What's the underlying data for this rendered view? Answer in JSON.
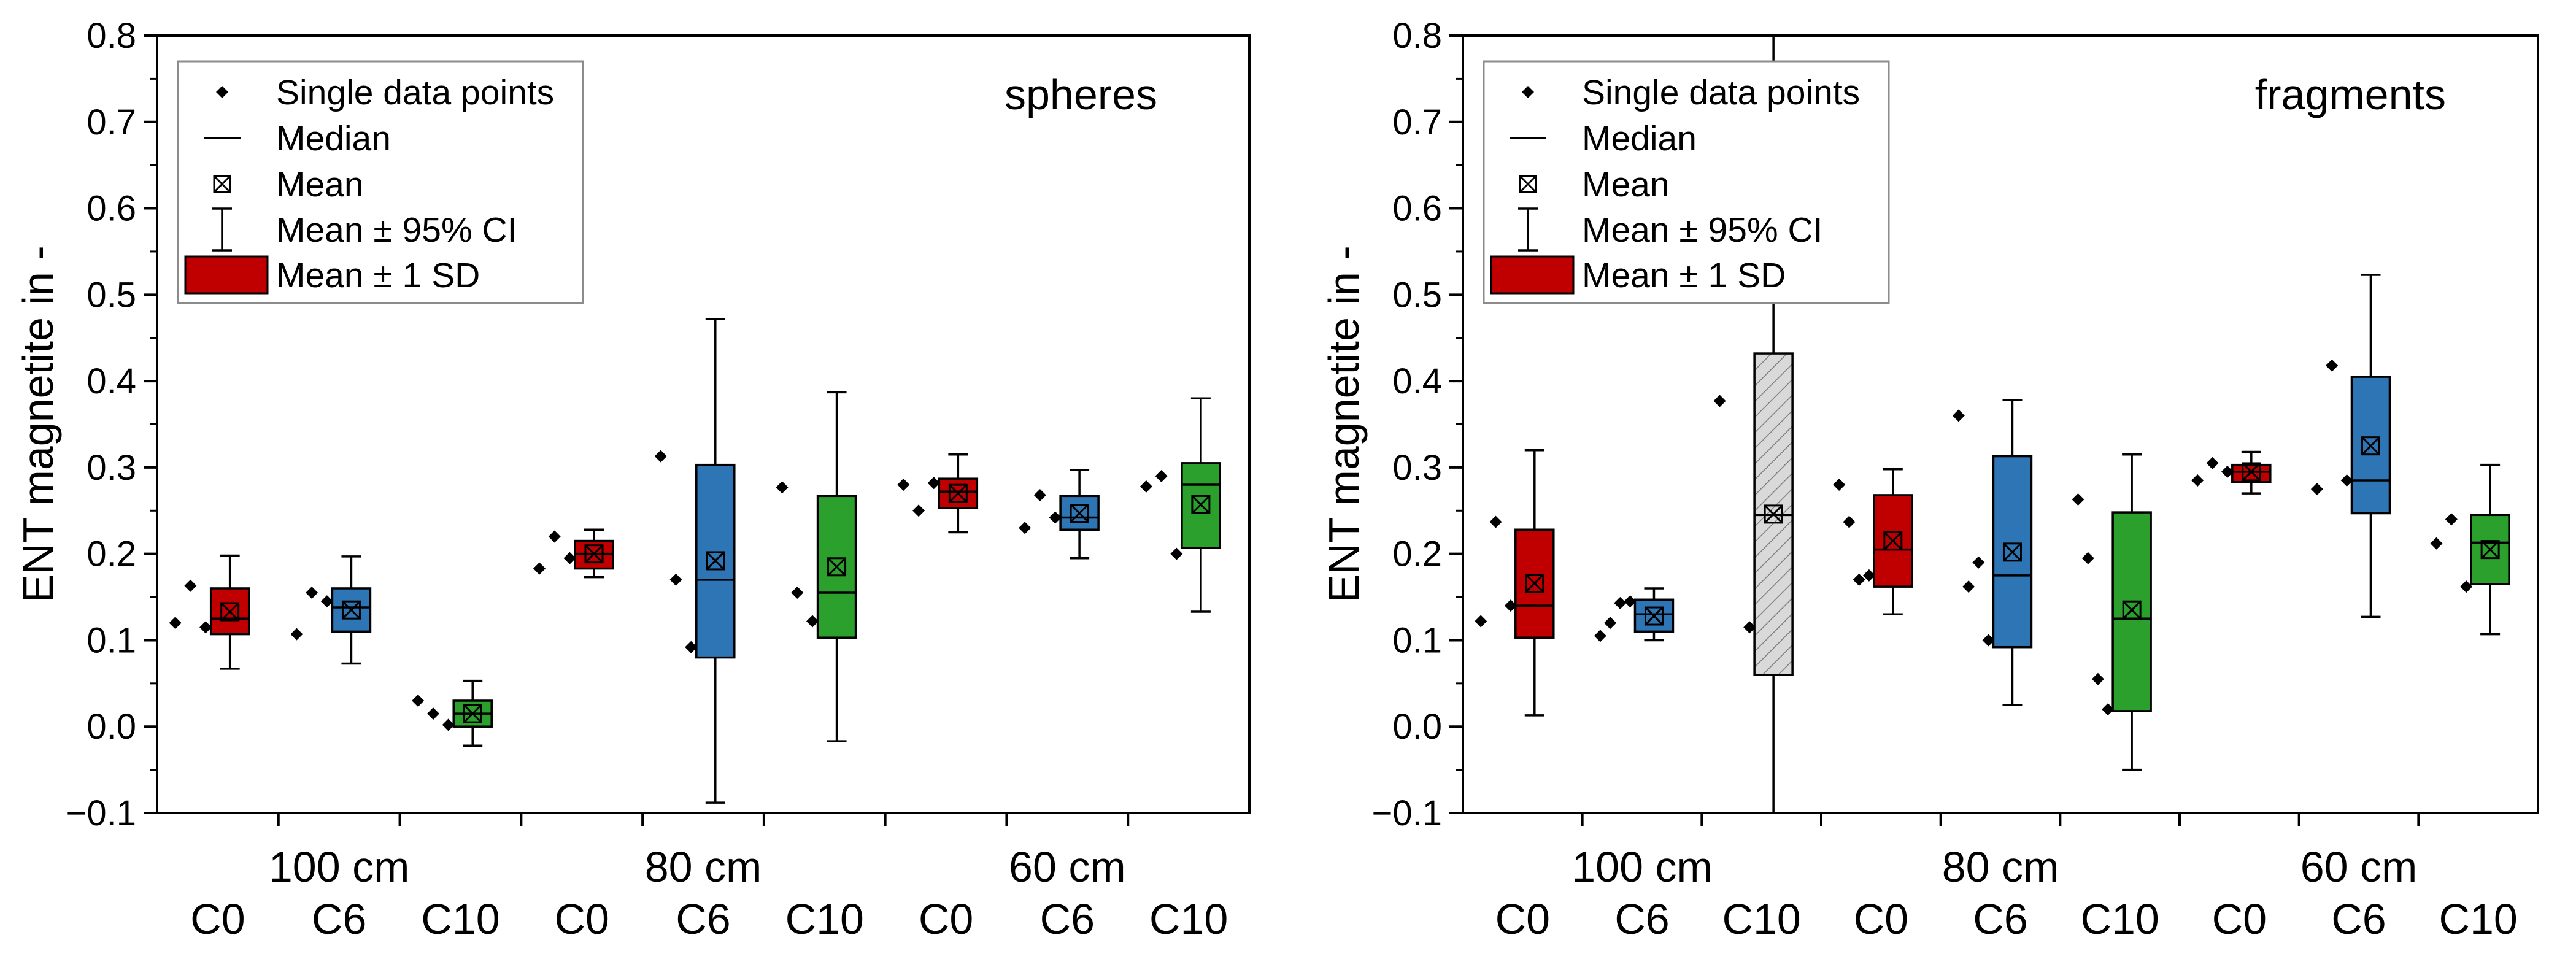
{
  "ylabel": "ENT magnetite in -",
  "ylim": [
    -0.1,
    0.8
  ],
  "yticks": [
    "−0.1",
    "0.0",
    "0.1",
    "0.2",
    "0.3",
    "0.4",
    "0.5",
    "0.6",
    "0.7",
    "0.8"
  ],
  "groups": [
    "100 cm",
    "80 cm",
    "60 cm"
  ],
  "conditions": [
    "C0",
    "C6",
    "C10",
    "C0",
    "C6",
    "C10",
    "C0",
    "C6",
    "C10"
  ],
  "legend": {
    "single": "Single data points",
    "median": "Median",
    "mean": "Mean",
    "ci": "Mean ± 95% CI",
    "sd": "Mean ± 1 SD"
  },
  "colors": {
    "C0": "#c00000",
    "C6": "#2e75b6",
    "C10": "#2ca02c",
    "hatched": "#d9d9d9"
  },
  "chart_data": [
    {
      "type": "box",
      "title": "spheres",
      "ylabel": "ENT magnetite in -",
      "ylim": [
        -0.1,
        0.8
      ],
      "legend_position": "top-left",
      "boxes": [
        {
          "group": "100 cm",
          "condition": "C0",
          "points": [
            0.12,
            0.163,
            0.115
          ],
          "sd": [
            0.107,
            0.16
          ],
          "ci": [
            0.067,
            0.198
          ],
          "median": 0.125,
          "mean": 0.133
        },
        {
          "group": "100 cm",
          "condition": "C6",
          "points": [
            0.107,
            0.155,
            0.145
          ],
          "sd": [
            0.11,
            0.16
          ],
          "ci": [
            0.073,
            0.197
          ],
          "median": 0.138,
          "mean": 0.135
        },
        {
          "group": "100 cm",
          "condition": "C10",
          "points": [
            0.03,
            0.015,
            0.002
          ],
          "sd": [
            0.0,
            0.03
          ],
          "ci": [
            -0.022,
            0.053
          ],
          "median": 0.015,
          "mean": 0.015
        },
        {
          "group": "80 cm",
          "condition": "C0",
          "points": [
            0.183,
            0.22,
            0.195
          ],
          "sd": [
            0.183,
            0.215
          ],
          "ci": [
            0.173,
            0.228
          ],
          "median": 0.2,
          "mean": 0.2
        },
        {
          "group": "80 cm",
          "condition": "C6",
          "points": [
            0.313,
            0.17,
            0.092
          ],
          "sd": [
            0.08,
            0.303
          ],
          "ci": [
            -0.088,
            0.472
          ],
          "median": 0.17,
          "mean": 0.192
        },
        {
          "group": "80 cm",
          "condition": "C10",
          "points": [
            0.277,
            0.155,
            0.122
          ],
          "sd": [
            0.103,
            0.267
          ],
          "ci": [
            -0.017,
            0.387
          ],
          "median": 0.155,
          "mean": 0.185
        },
        {
          "group": "60 cm",
          "condition": "C0",
          "points": [
            0.28,
            0.25,
            0.282
          ],
          "sd": [
            0.253,
            0.287
          ],
          "ci": [
            0.225,
            0.315
          ],
          "median": 0.272,
          "mean": 0.27
        },
        {
          "group": "60 cm",
          "condition": "C6",
          "points": [
            0.23,
            0.268,
            0.242
          ],
          "sd": [
            0.228,
            0.267
          ],
          "ci": [
            0.195,
            0.297
          ],
          "median": 0.242,
          "mean": 0.247
        },
        {
          "group": "60 cm",
          "condition": "C10",
          "points": [
            0.278,
            0.29,
            0.2
          ],
          "sd": [
            0.207,
            0.305
          ],
          "ci": [
            0.133,
            0.38
          ],
          "median": 0.28,
          "mean": 0.257
        }
      ]
    },
    {
      "type": "box",
      "title": "fragments",
      "ylabel": "ENT magnetite in -",
      "ylim": [
        -0.1,
        0.8
      ],
      "legend_position": "top-left",
      "boxes": [
        {
          "group": "100 cm",
          "condition": "C0",
          "points": [
            0.122,
            0.237,
            0.14
          ],
          "sd": [
            0.103,
            0.228
          ],
          "ci": [
            0.013,
            0.32
          ],
          "median": 0.14,
          "mean": 0.166
        },
        {
          "group": "100 cm",
          "condition": "C6",
          "points": [
            0.105,
            0.12,
            0.143,
            0.145
          ],
          "sd": [
            0.11,
            0.147
          ],
          "ci": [
            0.1,
            0.16
          ],
          "median": 0.13,
          "mean": 0.128
        },
        {
          "group": "100 cm",
          "condition": "C10",
          "points": [
            0.377,
            0.115
          ],
          "sd": [
            0.06,
            0.432
          ],
          "ci": [
            -0.1,
            0.8
          ],
          "median": 0.245,
          "mean": 0.246,
          "style": "hatched"
        },
        {
          "group": "80 cm",
          "condition": "C0",
          "points": [
            0.28,
            0.237,
            0.17,
            0.175
          ],
          "sd": [
            0.162,
            0.268
          ],
          "ci": [
            0.13,
            0.298
          ],
          "median": 0.205,
          "mean": 0.215
        },
        {
          "group": "80 cm",
          "condition": "C6",
          "points": [
            0.36,
            0.162,
            0.19,
            0.1
          ],
          "sd": [
            0.092,
            0.313
          ],
          "ci": [
            0.025,
            0.378
          ],
          "median": 0.175,
          "mean": 0.202
        },
        {
          "group": "80 cm",
          "condition": "C10",
          "points": [
            0.263,
            0.195,
            0.055,
            0.02
          ],
          "sd": [
            0.018,
            0.248
          ],
          "ci": [
            -0.05,
            0.315
          ],
          "median": 0.125,
          "mean": 0.135
        },
        {
          "group": "60 cm",
          "condition": "C0",
          "points": [
            0.285,
            0.305,
            0.295
          ],
          "sd": [
            0.283,
            0.303
          ],
          "ci": [
            0.27,
            0.318
          ],
          "median": 0.295,
          "mean": 0.295
        },
        {
          "group": "60 cm",
          "condition": "C6",
          "points": [
            0.275,
            0.418,
            0.285
          ],
          "sd": [
            0.247,
            0.405
          ],
          "ci": [
            0.127,
            0.523
          ],
          "median": 0.285,
          "mean": 0.325
        },
        {
          "group": "60 cm",
          "condition": "C10",
          "points": [
            0.212,
            0.24,
            0.162
          ],
          "sd": [
            0.165,
            0.245
          ],
          "ci": [
            0.107,
            0.303
          ],
          "median": 0.213,
          "mean": 0.205
        }
      ]
    }
  ]
}
